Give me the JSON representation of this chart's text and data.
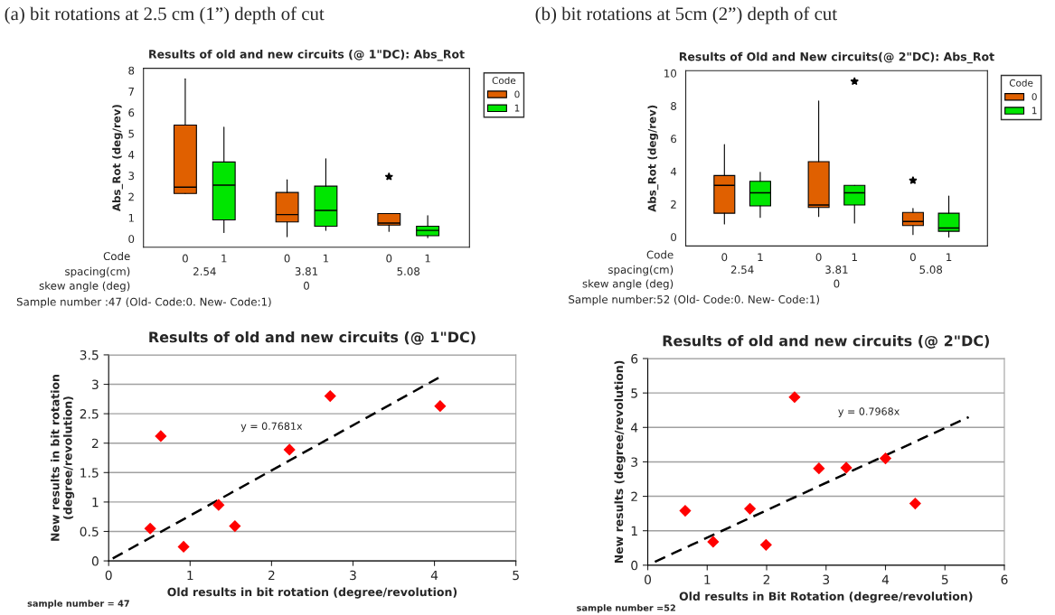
{
  "chart_data": [
    {
      "type": "box",
      "title": "Results of old and new circuits (@ 1\"DC): Abs_Rot",
      "ylabel": "Abs_Rot (deg/rev)",
      "legend_title": "Code",
      "legend": "right",
      "categories": [
        "2.54",
        "3.81",
        "5.08"
      ],
      "ylim": [
        -0.4,
        8.1
      ],
      "yticks": [
        0,
        1,
        2,
        3,
        4,
        5,
        6,
        7,
        8
      ],
      "series": [
        {
          "name": "0",
          "color": "#e06000",
          "boxes": [
            {
              "low": 2.15,
              "q1": 2.15,
              "median": 2.45,
              "q3": 5.4,
              "high": 7.6
            },
            {
              "low": 0.1,
              "q1": 0.8,
              "median": 1.15,
              "q3": 2.2,
              "high": 2.8
            },
            {
              "low": 0.35,
              "q1": 0.65,
              "median": 0.75,
              "q3": 1.2,
              "high": 1.2,
              "outliers": [
                2.95
              ]
            }
          ]
        },
        {
          "name": "1",
          "color": "#00e600",
          "boxes": [
            {
              "low": 0.3,
              "q1": 0.9,
              "median": 2.55,
              "q3": 3.65,
              "high": 5.3
            },
            {
              "low": 0.4,
              "q1": 0.6,
              "median": 1.35,
              "q3": 2.5,
              "high": 3.8
            },
            {
              "low": 0.05,
              "q1": 0.15,
              "median": 0.4,
              "q3": 0.6,
              "high": 1.1
            }
          ]
        }
      ],
      "annotations": [
        "(a) bit rotations at 2.5 cm (1”) depth of cut",
        "Code",
        "spacing(cm)",
        "skew angle (deg)",
        "0",
        "Sample number :47 (Old- Code:0. New- Code:1)"
      ]
    },
    {
      "type": "box",
      "title": "Results of Old and New circuits(@ 2\"DC): Abs_Rot",
      "ylabel": "Abs_Rot (deg/rev)",
      "legend_title": "Code",
      "legend": "right",
      "categories": [
        "2.54",
        "3.81",
        "5.08"
      ],
      "ylim": [
        -0.55,
        10.15
      ],
      "yticks": [
        0,
        2,
        4,
        6,
        8,
        10
      ],
      "series": [
        {
          "name": "0",
          "color": "#e06000",
          "boxes": [
            {
              "low": 0.8,
              "q1": 1.45,
              "median": 3.15,
              "q3": 3.75,
              "high": 5.65
            },
            {
              "low": 1.25,
              "q1": 1.8,
              "median": 1.95,
              "q3": 4.6,
              "high": 8.3
            },
            {
              "low": 0.15,
              "q1": 0.7,
              "median": 0.95,
              "q3": 1.5,
              "high": 1.75,
              "outliers": [
                3.45
              ]
            }
          ]
        },
        {
          "name": "1",
          "color": "#00e600",
          "boxes": [
            {
              "low": 1.2,
              "q1": 1.9,
              "median": 2.7,
              "q3": 3.4,
              "high": 3.95
            },
            {
              "low": 0.85,
              "q1": 1.95,
              "median": 2.7,
              "q3": 3.15,
              "high": 3.15,
              "outliers": [
                9.5
              ]
            },
            {
              "low": 0.0,
              "q1": 0.35,
              "median": 0.55,
              "q3": 1.45,
              "high": 2.5
            }
          ]
        }
      ],
      "annotations": [
        "(b) bit rotations at 5cm (2”) depth of cut",
        "Code",
        "spacing(cm)",
        "skew angle (deg)",
        "0",
        "Sample number:52 (Old- Code:0. New- Code:1)"
      ]
    },
    {
      "type": "scatter",
      "title": "Results of old and new circuits (@ 1\"DC)",
      "xlabel": "Old results in bit rotation (degree/revolution)",
      "ylabel": "New results in bit rotation\n(degree/revolution)",
      "xlim": [
        0,
        5
      ],
      "xticks": [
        0,
        1,
        2,
        3,
        4,
        5
      ],
      "ylim": [
        0,
        3.5
      ],
      "yticks": [
        0,
        0.5,
        1,
        1.5,
        2,
        2.5,
        3,
        3.5
      ],
      "grid": "y",
      "series": [
        {
          "type": "scatter",
          "marker": "diamond",
          "color": "#ff0000",
          "x": [
            0.51,
            0.64,
            0.92,
            1.35,
            1.55,
            2.22,
            2.72,
            4.07
          ],
          "values": [
            0.55,
            2.12,
            0.24,
            0.95,
            0.59,
            1.89,
            2.8,
            2.63
          ]
        },
        {
          "type": "line",
          "line_style": "dashed",
          "color": "#000000",
          "x": [
            0.05,
            4.05
          ],
          "values": [
            0.04,
            3.11
          ]
        }
      ],
      "annotations": [
        "y = 0.7681x",
        "sample number = 47"
      ]
    },
    {
      "type": "scatter",
      "title": "Results of old and new circuits (@ 2\"DC)",
      "xlabel": "Old results in Bit Rotation (degree/revolution)",
      "ylabel": "New results (degree/revolution)",
      "xlim": [
        0,
        6
      ],
      "xticks": [
        0,
        1,
        2,
        3,
        4,
        5,
        6
      ],
      "ylim": [
        0,
        6
      ],
      "yticks": [
        0,
        1,
        2,
        3,
        4,
        5,
        6
      ],
      "grid": "y",
      "series": [
        {
          "type": "scatter",
          "marker": "diamond",
          "color": "#ff0000",
          "x": [
            0.63,
            1.1,
            1.72,
            1.99,
            2.47,
            2.88,
            3.34,
            4.0,
            4.5
          ],
          "values": [
            1.58,
            0.68,
            1.64,
            0.59,
            4.88,
            2.81,
            2.83,
            3.1,
            1.79
          ]
        },
        {
          "type": "line",
          "line_style": "dashed",
          "color": "#000000",
          "x": [
            0.12,
            5.4
          ],
          "values": [
            0.1,
            4.3
          ]
        }
      ],
      "annotations": [
        "y = 0.7968x",
        "sample number =52"
      ]
    }
  ]
}
